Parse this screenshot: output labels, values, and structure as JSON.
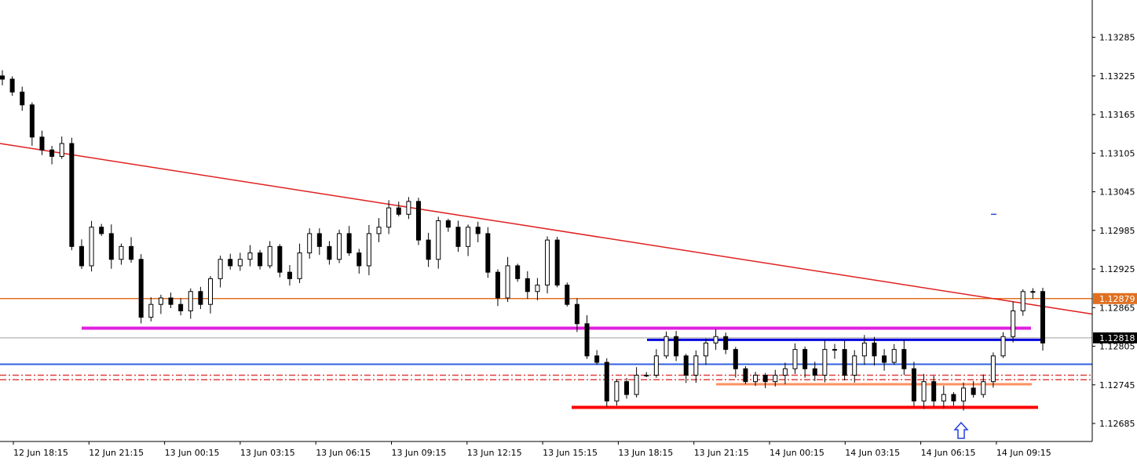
{
  "chart_data": {
    "type": "candlestick",
    "symbol": "",
    "title": "",
    "xlabel": "",
    "ylabel": "",
    "ylim": [
      1.12657,
      1.13343
    ],
    "y_ticks": [
      "1.13285",
      "1.13225",
      "1.13165",
      "1.13105",
      "1.13045",
      "1.12985",
      "1.12925",
      "1.12865",
      "1.12805",
      "1.12745",
      "1.12685"
    ],
    "x_ticks": [
      "12 Jun 18:15",
      "12 Jun 21:15",
      "13 Jun 00:15",
      "13 Jun 03:15",
      "13 Jun 06:15",
      "13 Jun 09:15",
      "13 Jun 12:15",
      "13 Jun 15:15",
      "13 Jun 18:15",
      "13 Jun 21:15",
      "14 Jun 00:15",
      "14 Jun 03:15",
      "14 Jun 06:15",
      "14 Jun 09:15"
    ],
    "price_labels": [
      {
        "name": "orange-level",
        "value": 1.12879,
        "text": "1.12879",
        "color": "#e07020"
      },
      {
        "name": "current-price",
        "value": 1.12818,
        "text": "1.12818",
        "color": "#000000"
      }
    ],
    "close_path": [
      1.1322,
      1.132,
      1.1318,
      1.1313,
      1.1311,
      1.131,
      1.1312,
      1.1296,
      1.1293,
      1.1299,
      1.1298,
      1.1294,
      1.1296,
      1.1294,
      1.1285,
      1.1287,
      1.1288,
      1.1287,
      1.1286,
      1.1289,
      1.1287,
      1.1291,
      1.1294,
      1.1293,
      1.1294,
      1.1295,
      1.1293,
      1.1296,
      1.1292,
      1.1291,
      1.1295,
      1.1298,
      1.1296,
      1.1294,
      1.1298,
      1.1295,
      1.1293,
      1.1298,
      1.1299,
      1.1302,
      1.1301,
      1.1303,
      1.1297,
      1.1294,
      1.13,
      1.1299,
      1.1296,
      1.1299,
      1.1298,
      1.1292,
      1.1288,
      1.1293,
      1.1291,
      1.1289,
      1.129,
      1.1297,
      1.129,
      1.1287,
      1.1284,
      1.1279,
      1.1278,
      1.1272,
      1.1275,
      1.1273,
      1.1276,
      1.1276,
      1.1279,
      1.1282,
      1.1279,
      1.1276,
      1.1279,
      1.1281,
      1.1282,
      1.128,
      1.1277,
      1.1275,
      1.1276,
      1.1275,
      1.1276,
      1.1277,
      1.128,
      1.1277,
      1.1276,
      1.128,
      1.128,
      1.1276,
      1.1279,
      1.1281,
      1.1279,
      1.1278,
      1.128,
      1.1277,
      1.1272,
      1.1275,
      1.1272,
      1.1273,
      1.1272,
      1.1274,
      1.1273,
      1.1275,
      1.1279,
      1.1282,
      1.1286,
      1.1289,
      1.1289,
      1.1281
    ],
    "horizontal_lines": [
      {
        "name": "magenta-level",
        "value": 1.12833,
        "color": "#e020e0",
        "style": "solid",
        "segment": true
      },
      {
        "name": "dark-blue-level",
        "value": 1.12815,
        "color": "#0000e0",
        "style": "solid",
        "segment": true
      },
      {
        "name": "orange-level",
        "value": 1.12879,
        "color": "#e07020",
        "style": "solid",
        "segment": false
      },
      {
        "name": "blue-level",
        "value": 1.12777,
        "color": "#3060e0",
        "style": "solid",
        "segment": false
      },
      {
        "name": "red-dash-level-1",
        "value": 1.1276,
        "color": "#e04040",
        "style": "dashdot",
        "segment": false
      },
      {
        "name": "red-dash-level-2",
        "value": 1.12753,
        "color": "#e04040",
        "style": "dashdot",
        "segment": false
      },
      {
        "name": "light-orange-level",
        "value": 1.12746,
        "color": "#ff9060",
        "style": "solid",
        "segment": true
      },
      {
        "name": "red-level",
        "value": 1.1271,
        "color": "#ff0000",
        "style": "solid",
        "segment": true
      },
      {
        "name": "grey-current-line",
        "value": 1.12818,
        "color": "#a0a0a0",
        "style": "solid",
        "segment": false
      }
    ],
    "trendline": {
      "name": "red-trendline",
      "start_value": 1.1312,
      "end_value": 1.12855,
      "color": "#e02020"
    },
    "annotations": [
      {
        "name": "up-arrow",
        "value": 1.12685,
        "color": "#2040e0"
      },
      {
        "name": "small-dash",
        "value": 1.1301,
        "color": "#3050d0"
      }
    ],
    "grid": false,
    "legend": "none"
  }
}
